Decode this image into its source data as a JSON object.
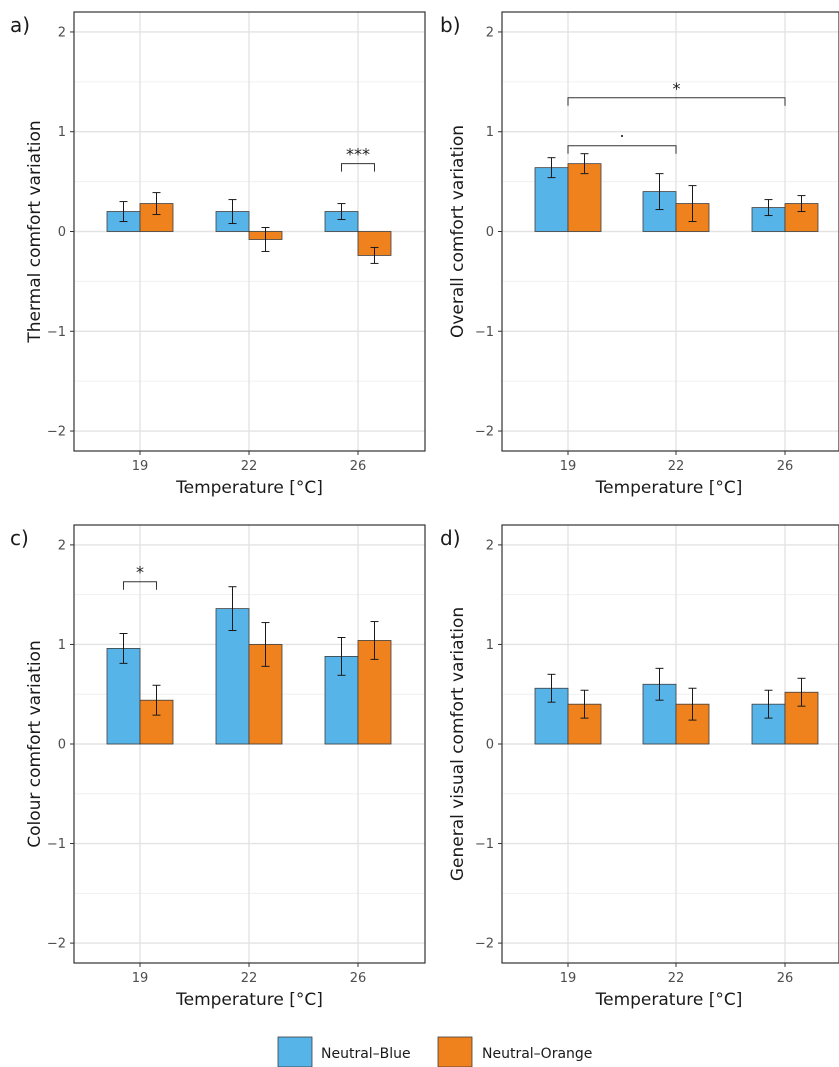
{
  "legend": {
    "items": [
      {
        "name": "Neutral–Blue",
        "color": "#56B4E9"
      },
      {
        "name": "Neutral–Orange",
        "color": "#F0821E"
      }
    ]
  },
  "chart_data": [
    {
      "panel": "a)",
      "type": "bar",
      "xlabel": "Temperature [°C]",
      "ylabel": "Thermal comfort variation",
      "categories": [
        "19",
        "22",
        "26"
      ],
      "ylim": [
        -2.2,
        2.2
      ],
      "yticks": [
        -2,
        -1,
        0,
        1,
        2
      ],
      "ytick_labels": [
        "−2",
        "−1",
        "0",
        "1",
        "2"
      ],
      "grid": true,
      "series": [
        {
          "name": "Neutral–Blue",
          "values": [
            0.2,
            0.2,
            0.2
          ],
          "err": [
            0.1,
            0.12,
            0.08
          ]
        },
        {
          "name": "Neutral–Orange",
          "values": [
            0.28,
            -0.08,
            -0.24
          ],
          "err": [
            0.11,
            0.12,
            0.08
          ]
        }
      ],
      "significance": [
        {
          "label": "***",
          "from": {
            "category": 2,
            "series": 0
          },
          "to": {
            "category": 2,
            "series": 1
          },
          "y": 0.68
        }
      ]
    },
    {
      "panel": "b)",
      "type": "bar",
      "xlabel": "Temperature [°C]",
      "ylabel": "Overall comfort variation",
      "categories": [
        "19",
        "22",
        "26"
      ],
      "ylim": [
        -2.2,
        2.2
      ],
      "yticks": [
        -2,
        -1,
        0,
        1,
        2
      ],
      "ytick_labels": [
        "−2",
        "−1",
        "0",
        "1",
        "2"
      ],
      "grid": true,
      "series": [
        {
          "name": "Neutral–Blue",
          "values": [
            0.64,
            0.4,
            0.24
          ],
          "err": [
            0.1,
            0.18,
            0.08
          ]
        },
        {
          "name": "Neutral–Orange",
          "values": [
            0.68,
            0.28,
            0.28
          ],
          "err": [
            0.1,
            0.18,
            0.08
          ]
        }
      ],
      "significance": [
        {
          "label": "*",
          "from": {
            "category": 0,
            "series": -1
          },
          "to": {
            "category": 2,
            "series": -1
          },
          "y": 1.34
        },
        {
          "label": "·",
          "from": {
            "category": 0,
            "series": -1
          },
          "to": {
            "category": 1,
            "series": -1
          },
          "y": 0.86
        }
      ]
    },
    {
      "panel": "c)",
      "type": "bar",
      "xlabel": "Temperature [°C]",
      "ylabel": "Colour comfort variation",
      "categories": [
        "19",
        "22",
        "26"
      ],
      "ylim": [
        -2.2,
        2.2
      ],
      "yticks": [
        -2,
        -1,
        0,
        1,
        2
      ],
      "ytick_labels": [
        "−2",
        "−1",
        "0",
        "1",
        "2"
      ],
      "grid": true,
      "series": [
        {
          "name": "Neutral–Blue",
          "values": [
            0.96,
            1.36,
            0.88
          ],
          "err": [
            0.15,
            0.22,
            0.19
          ]
        },
        {
          "name": "Neutral–Orange",
          "values": [
            0.44,
            1.0,
            1.04
          ],
          "err": [
            0.15,
            0.22,
            0.19
          ]
        }
      ],
      "significance": [
        {
          "label": "*",
          "from": {
            "category": 0,
            "series": 0
          },
          "to": {
            "category": 0,
            "series": 1
          },
          "y": 1.63
        }
      ]
    },
    {
      "panel": "d)",
      "type": "bar",
      "xlabel": "Temperature [°C]",
      "ylabel": "General visual comfort variation",
      "categories": [
        "19",
        "22",
        "26"
      ],
      "ylim": [
        -2.2,
        2.2
      ],
      "yticks": [
        -2,
        -1,
        0,
        1,
        2
      ],
      "ytick_labels": [
        "−2",
        "−1",
        "0",
        "1",
        "2"
      ],
      "grid": true,
      "series": [
        {
          "name": "Neutral–Blue",
          "values": [
            0.56,
            0.6,
            0.4
          ],
          "err": [
            0.14,
            0.16,
            0.14
          ]
        },
        {
          "name": "Neutral–Orange",
          "values": [
            0.4,
            0.4,
            0.52
          ],
          "err": [
            0.14,
            0.16,
            0.14
          ]
        }
      ],
      "significance": []
    }
  ]
}
